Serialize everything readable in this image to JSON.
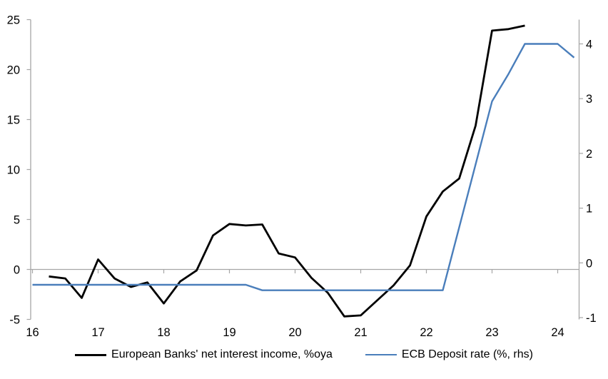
{
  "chart_data": {
    "type": "line",
    "title": "",
    "grid": "zero-gridline-only",
    "legend_position": "bottom",
    "axis_color": "#a6a6a6",
    "x_axis": {
      "ticks": [
        16,
        17,
        18,
        19,
        20,
        21,
        22,
        23,
        24
      ],
      "min": 16,
      "max": 24.35
    },
    "left_axis": {
      "ticks": [
        25,
        20,
        15,
        10,
        5,
        0,
        -5
      ],
      "min": -5,
      "max": 25
    },
    "right_axis": {
      "ticks": [
        4,
        3,
        2,
        1,
        0,
        -1
      ],
      "min": -1.03,
      "max": 4.44
    },
    "series": [
      {
        "name": "European Banks' net interest income, %oya",
        "axis": "left",
        "color": "#000000",
        "stroke_width": 2.8,
        "points": [
          [
            16.25,
            -0.7
          ],
          [
            16.5,
            -0.9
          ],
          [
            16.75,
            -2.85
          ],
          [
            17.0,
            1.0
          ],
          [
            17.25,
            -0.9
          ],
          [
            17.5,
            -1.75
          ],
          [
            17.75,
            -1.3
          ],
          [
            18.0,
            -3.4
          ],
          [
            18.25,
            -1.2
          ],
          [
            18.5,
            -0.1
          ],
          [
            18.75,
            3.4
          ],
          [
            19.0,
            4.55
          ],
          [
            19.25,
            4.4
          ],
          [
            19.5,
            4.5
          ],
          [
            19.75,
            1.6
          ],
          [
            20.0,
            1.2
          ],
          [
            20.25,
            -0.85
          ],
          [
            20.5,
            -2.35
          ],
          [
            20.75,
            -4.7
          ],
          [
            21.0,
            -4.6
          ],
          [
            21.25,
            -3.1
          ],
          [
            21.5,
            -1.6
          ],
          [
            21.75,
            0.4
          ],
          [
            22.0,
            5.3
          ],
          [
            22.25,
            7.8
          ],
          [
            22.5,
            9.1
          ],
          [
            22.75,
            14.4
          ],
          [
            23.0,
            23.9
          ],
          [
            23.25,
            24.05
          ],
          [
            23.5,
            24.4
          ]
        ]
      },
      {
        "name": "ECB Deposit rate (%, rhs)",
        "axis": "right",
        "color": "#4a7ebb",
        "stroke_width": 2.4,
        "points": [
          [
            16.0,
            -0.4
          ],
          [
            16.25,
            -0.4
          ],
          [
            16.5,
            -0.4
          ],
          [
            16.75,
            -0.4
          ],
          [
            17.0,
            -0.4
          ],
          [
            17.25,
            -0.4
          ],
          [
            17.5,
            -0.4
          ],
          [
            17.75,
            -0.4
          ],
          [
            18.0,
            -0.4
          ],
          [
            18.25,
            -0.4
          ],
          [
            18.5,
            -0.4
          ],
          [
            18.75,
            -0.4
          ],
          [
            19.0,
            -0.4
          ],
          [
            19.25,
            -0.4
          ],
          [
            19.5,
            -0.5
          ],
          [
            19.75,
            -0.5
          ],
          [
            20.0,
            -0.5
          ],
          [
            20.25,
            -0.5
          ],
          [
            20.5,
            -0.5
          ],
          [
            20.75,
            -0.5
          ],
          [
            21.0,
            -0.5
          ],
          [
            21.25,
            -0.5
          ],
          [
            21.5,
            -0.5
          ],
          [
            21.75,
            -0.5
          ],
          [
            22.0,
            -0.5
          ],
          [
            22.25,
            -0.5
          ],
          [
            22.5,
            0.65
          ],
          [
            22.75,
            1.8
          ],
          [
            23.0,
            2.95
          ],
          [
            23.25,
            3.45
          ],
          [
            23.5,
            4.0
          ],
          [
            23.75,
            4.0
          ],
          [
            24.0,
            4.0
          ],
          [
            24.25,
            3.75
          ]
        ]
      }
    ]
  }
}
